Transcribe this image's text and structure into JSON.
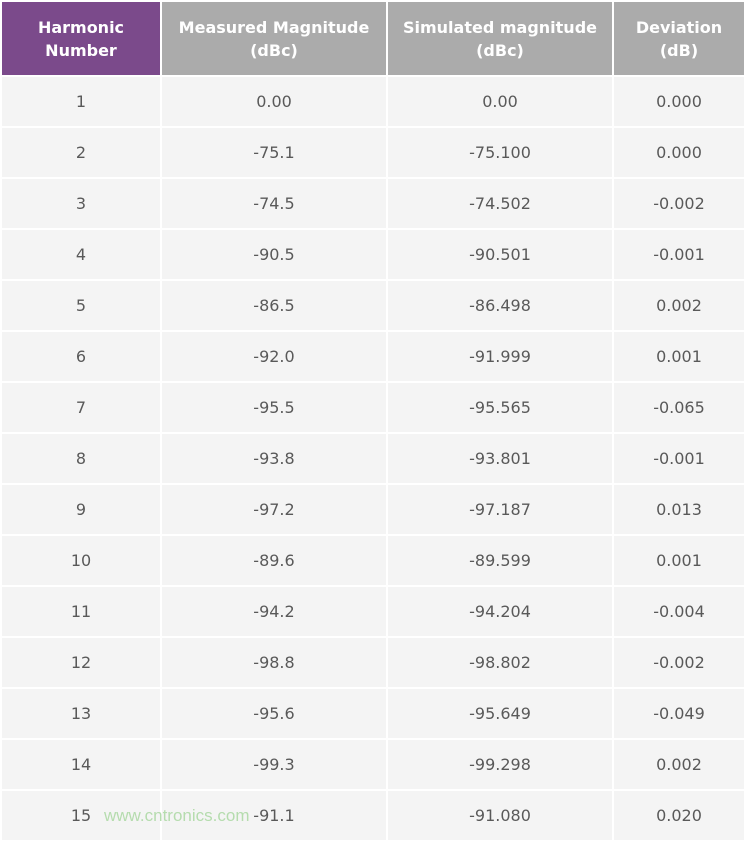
{
  "table": {
    "headers": [
      [
        "Harmonic",
        "Number"
      ],
      [
        "Measured Magnitude",
        "(dBc)"
      ],
      [
        "Simulated magnitude",
        "(dBc)"
      ],
      [
        "Deviation",
        "(dB)"
      ]
    ],
    "rows": [
      [
        "1",
        "0.00",
        "0.00",
        "0.000"
      ],
      [
        "2",
        "-75.1",
        "-75.100",
        "0.000"
      ],
      [
        "3",
        "-74.5",
        "-74.502",
        "-0.002"
      ],
      [
        "4",
        "-90.5",
        "-90.501",
        "-0.001"
      ],
      [
        "5",
        "-86.5",
        "-86.498",
        "0.002"
      ],
      [
        "6",
        "-92.0",
        "-91.999",
        "0.001"
      ],
      [
        "7",
        "-95.5",
        "-95.565",
        "-0.065"
      ],
      [
        "8",
        "-93.8",
        "-93.801",
        "-0.001"
      ],
      [
        "9",
        "-97.2",
        "-97.187",
        "0.013"
      ],
      [
        "10",
        "-89.6",
        "-89.599",
        "0.001"
      ],
      [
        "11",
        "-94.2",
        "-94.204",
        "-0.004"
      ],
      [
        "12",
        "-98.8",
        "-98.802",
        "-0.002"
      ],
      [
        "13",
        "-95.6",
        "-95.649",
        "-0.049"
      ],
      [
        "14",
        "-99.3",
        "-99.298",
        "0.002"
      ],
      [
        "15",
        "-91.1",
        "-91.080",
        "0.020"
      ]
    ]
  },
  "colors": {
    "first_header": "#7b4a8b",
    "header": "#ababab",
    "cell": "#f4f4f4"
  },
  "watermark": "www.cntronics.com"
}
